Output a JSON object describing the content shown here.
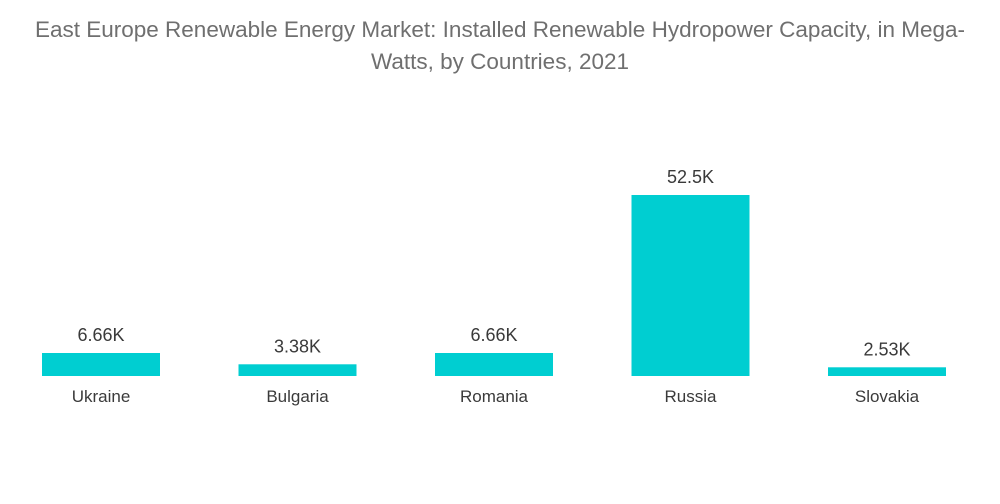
{
  "chart_data": {
    "type": "bar",
    "title": "East Europe Renewable Energy Market: Installed Renewable Hydropower Capacity, in Mega-Watts, by Countries, 2021",
    "categories": [
      "Ukraine",
      "Bulgaria",
      "Romania",
      "Russia",
      "Slovakia"
    ],
    "values": [
      6660,
      3380,
      6660,
      52500,
      2530
    ],
    "value_labels": [
      "6.66K",
      "3.38K",
      "6.66K",
      "52.5K",
      "2.53K"
    ],
    "xlabel": "",
    "ylabel": "",
    "ylim": [
      0,
      52500
    ],
    "grid": false,
    "legend": "none",
    "bar_color": "#00ced1"
  }
}
